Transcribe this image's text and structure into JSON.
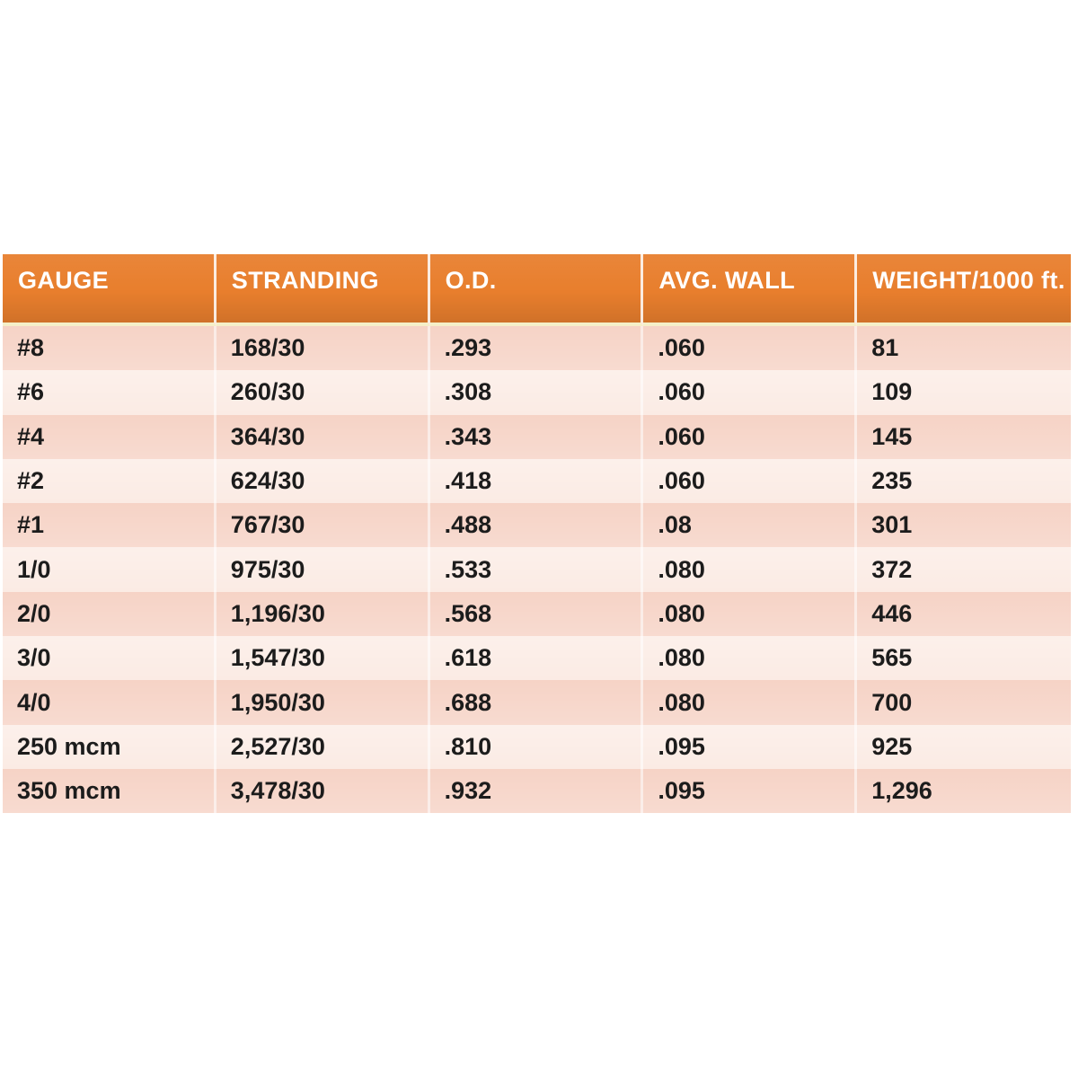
{
  "chart_data": {
    "type": "table",
    "columns": [
      "GAUGE",
      "STRANDING",
      "O.D.",
      "AVG. WALL",
      "WEIGHT/1000 ft."
    ],
    "rows": [
      [
        "#8",
        "168/30",
        ".293",
        ".060",
        "81"
      ],
      [
        "#6",
        "260/30",
        ".308",
        ".060",
        "109"
      ],
      [
        "#4",
        "364/30",
        ".343",
        ".060",
        "145"
      ],
      [
        "#2",
        "624/30",
        ".418",
        ".060",
        "235"
      ],
      [
        "#1",
        "767/30",
        ".488",
        ".08",
        "301"
      ],
      [
        "1/0",
        "975/30",
        ".533",
        ".080",
        "372"
      ],
      [
        "2/0",
        "1,196/30",
        ".568",
        ".080",
        "446"
      ],
      [
        "3/0",
        "1,547/30",
        ".618",
        ".080",
        "565"
      ],
      [
        "4/0",
        "1,950/30",
        ".688",
        ".080",
        "700"
      ],
      [
        "250 mcm",
        "2,527/30",
        ".810",
        ".095",
        "925"
      ],
      [
        "350 mcm",
        "3,478/30",
        ".932",
        ".095",
        "1,296"
      ]
    ]
  },
  "colors": {
    "header_bg": "#E87E2D",
    "header_text": "#FFFFFF",
    "row_dark": "#F6D3C6",
    "row_light": "#FBEBE4",
    "divider": "#F5EFC8",
    "body_text": "#1C1C1C"
  }
}
